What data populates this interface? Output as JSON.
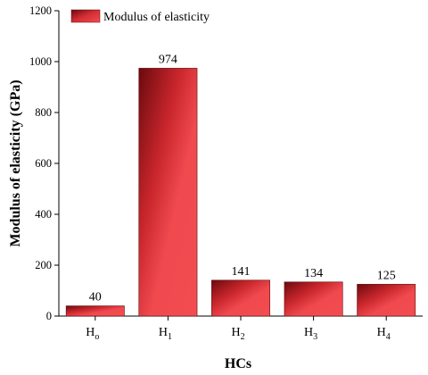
{
  "chart_data": {
    "type": "bar",
    "title": "",
    "xlabel": "HCs",
    "ylabel": "Modulus of elasticity (GPa)",
    "ylim": [
      0,
      1200
    ],
    "yticks": [
      0,
      200,
      400,
      600,
      800,
      1000,
      1200
    ],
    "categories": [
      {
        "base": "H",
        "sub": "o"
      },
      {
        "base": "H",
        "sub": "1"
      },
      {
        "base": "H",
        "sub": "2"
      },
      {
        "base": "H",
        "sub": "3"
      },
      {
        "base": "H",
        "sub": "4"
      }
    ],
    "series": [
      {
        "name": "Modulus of elasticity",
        "values": [
          40,
          974,
          141,
          134,
          125
        ],
        "color": "#e8373c"
      }
    ],
    "data_labels": [
      "40",
      "974",
      "141",
      "134",
      "125"
    ],
    "legend": {
      "position": "top-left",
      "label": "Modulus of elasticity"
    },
    "grid": false
  }
}
